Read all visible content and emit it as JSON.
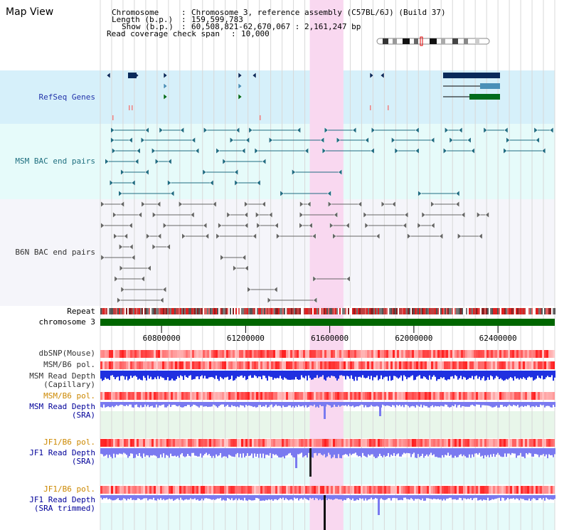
{
  "title": "Map View",
  "header": {
    "chromosome_key": "Chromosome",
    "chromosome_value": "Chromosome 3, reference assembly (C57BL/6J) (Build 37)",
    "length_key": "Length (b.p.)",
    "length_value": "159,599,783",
    "show_key": "Show (b.p.)",
    "show_value": "60,508,821-62,670,067 : 2,161,247 bp",
    "coverage_key": "Read coverage check span",
    "coverage_value": "10,000"
  },
  "tracks": {
    "refseq": "RefSeq Genes",
    "msm_bac": "MSM BAC end pairs",
    "b6n_bac": "B6N BAC end pairs",
    "repeat": "Repeat",
    "chromosome": "chromosome 3",
    "dbsnp": "dbSNP(Mouse)",
    "msm_pol1": "MSM/B6 pol.",
    "msm_depth_cap_1": "MSM Read Depth",
    "msm_depth_cap_2": "(Capillary)",
    "msm_pol2": "MSM/B6 pol.",
    "msm_depth_sra_1": "MSM Read Depth",
    "msm_depth_sra_2": "(SRA)",
    "jf1_pol1": "JF1/B6 pol.",
    "jf1_depth_sra_1": "JF1 Read Depth",
    "jf1_depth_sra_2": "(SRA)",
    "jf1_pol2": "JF1/B6 pol.",
    "jf1_depth_trim_1": "JF1 Read Depth",
    "jf1_depth_trim_2": "(SRA trimmed)"
  },
  "axis": {
    "ticks": [
      {
        "label": "60800000",
        "bp": 60800000
      },
      {
        "label": "61200000",
        "bp": 61200000
      },
      {
        "label": "61600000",
        "bp": 61600000
      },
      {
        "label": "62000000",
        "bp": 62000000
      },
      {
        "label": "62400000",
        "bp": 62400000
      }
    ]
  },
  "view": {
    "start_bp": 60508821,
    "end_bp": 62670067
  },
  "highlight": {
    "start_bp": 61505000,
    "end_bp": 61665000
  },
  "colors": {
    "refseq_bg": "#d6f0fa",
    "msm_bg": "#e6fbfa",
    "b6n_bg": "#f5f5fa",
    "highlight": "#f9d8f0",
    "chromosome_bar": "#006600",
    "gene_navy": "#0a2a5a",
    "gene_steel": "#4a90b8",
    "gene_green": "#006b1b",
    "msm_teal": "#206d82",
    "b6n_grey": "#666666",
    "depth_blue": "#2030e0",
    "depth_light": "#7a7af0",
    "pol_red": "#ee2222",
    "sra_bg": "#e8f6ea"
  }
}
